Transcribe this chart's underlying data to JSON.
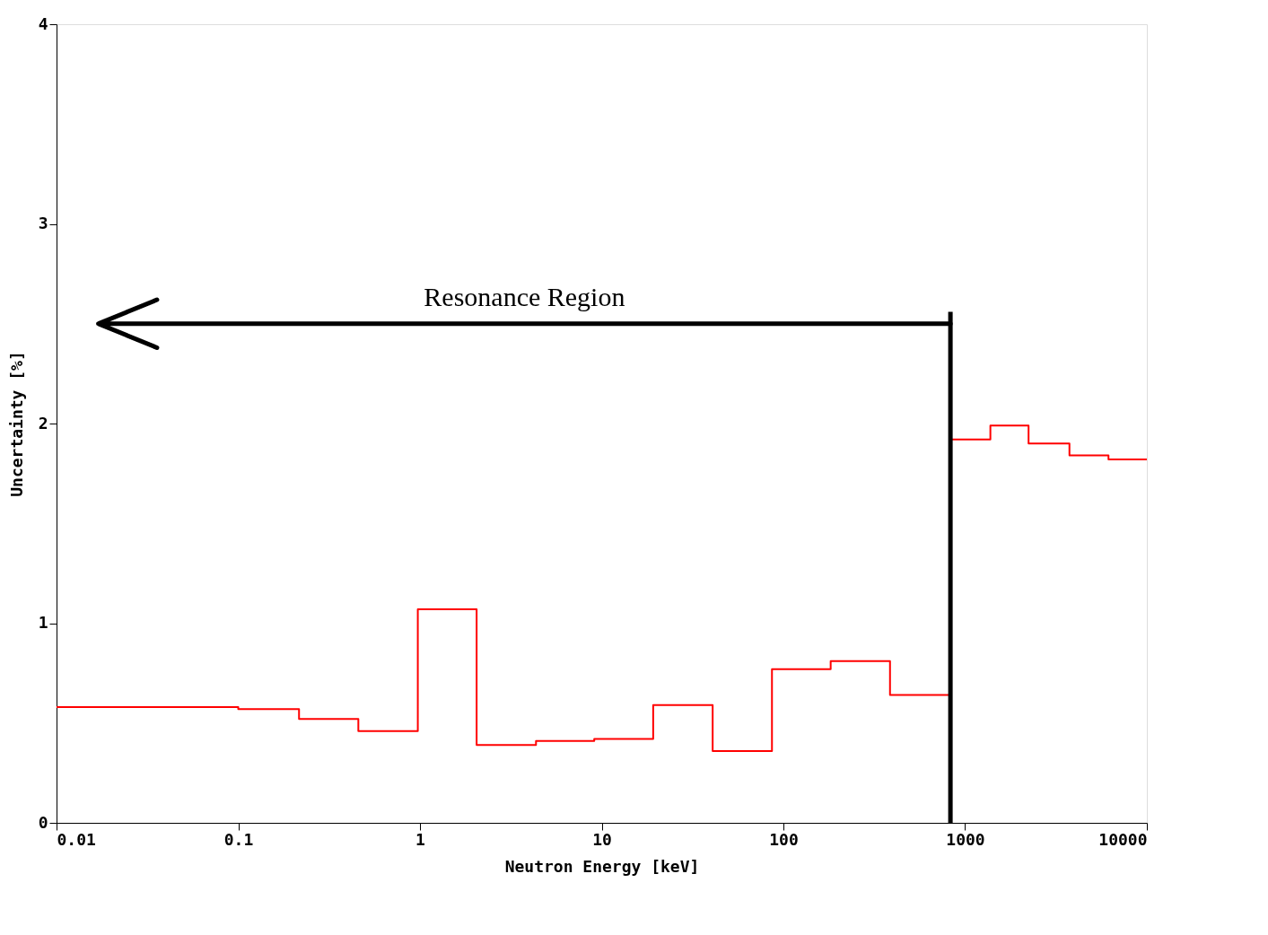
{
  "chart_data": {
    "type": "step",
    "xlabel": "Neutron Energy [keV]",
    "ylabel": "Uncertainty [%]",
    "x": [
      0.01,
      0.1,
      0.216,
      0.458,
      0.973,
      2.05,
      4.35,
      9.1,
      19.2,
      40.8,
      86.5,
      182,
      386,
      830,
      1377,
      2234,
      3750,
      6150,
      10000
    ],
    "series": [
      {
        "color": "#ff0000",
        "values": [
          0.58,
          0.57,
          0.52,
          0.46,
          1.07,
          0.39,
          0.41,
          0.42,
          0.59,
          0.36,
          0.77,
          0.81,
          0.64,
          1.92,
          1.99,
          1.9,
          1.84,
          1.82,
          1.82
        ]
      }
    ],
    "log": "x",
    "xlim": [
      0.01,
      10000
    ],
    "xticks": [
      0.01,
      0.1,
      1,
      10,
      100,
      1000,
      10000
    ],
    "ylim": [
      0,
      4
    ],
    "yticks": [
      0,
      1,
      2,
      3,
      4
    ],
    "grid": false,
    "ref_lines": [
      {
        "axis": "x",
        "value": 830,
        "label": null,
        "color": "#000000"
      },
      {
        "axis": "y",
        "value": 2.5,
        "label": "Resonance Region",
        "color": "#000000"
      }
    ]
  }
}
